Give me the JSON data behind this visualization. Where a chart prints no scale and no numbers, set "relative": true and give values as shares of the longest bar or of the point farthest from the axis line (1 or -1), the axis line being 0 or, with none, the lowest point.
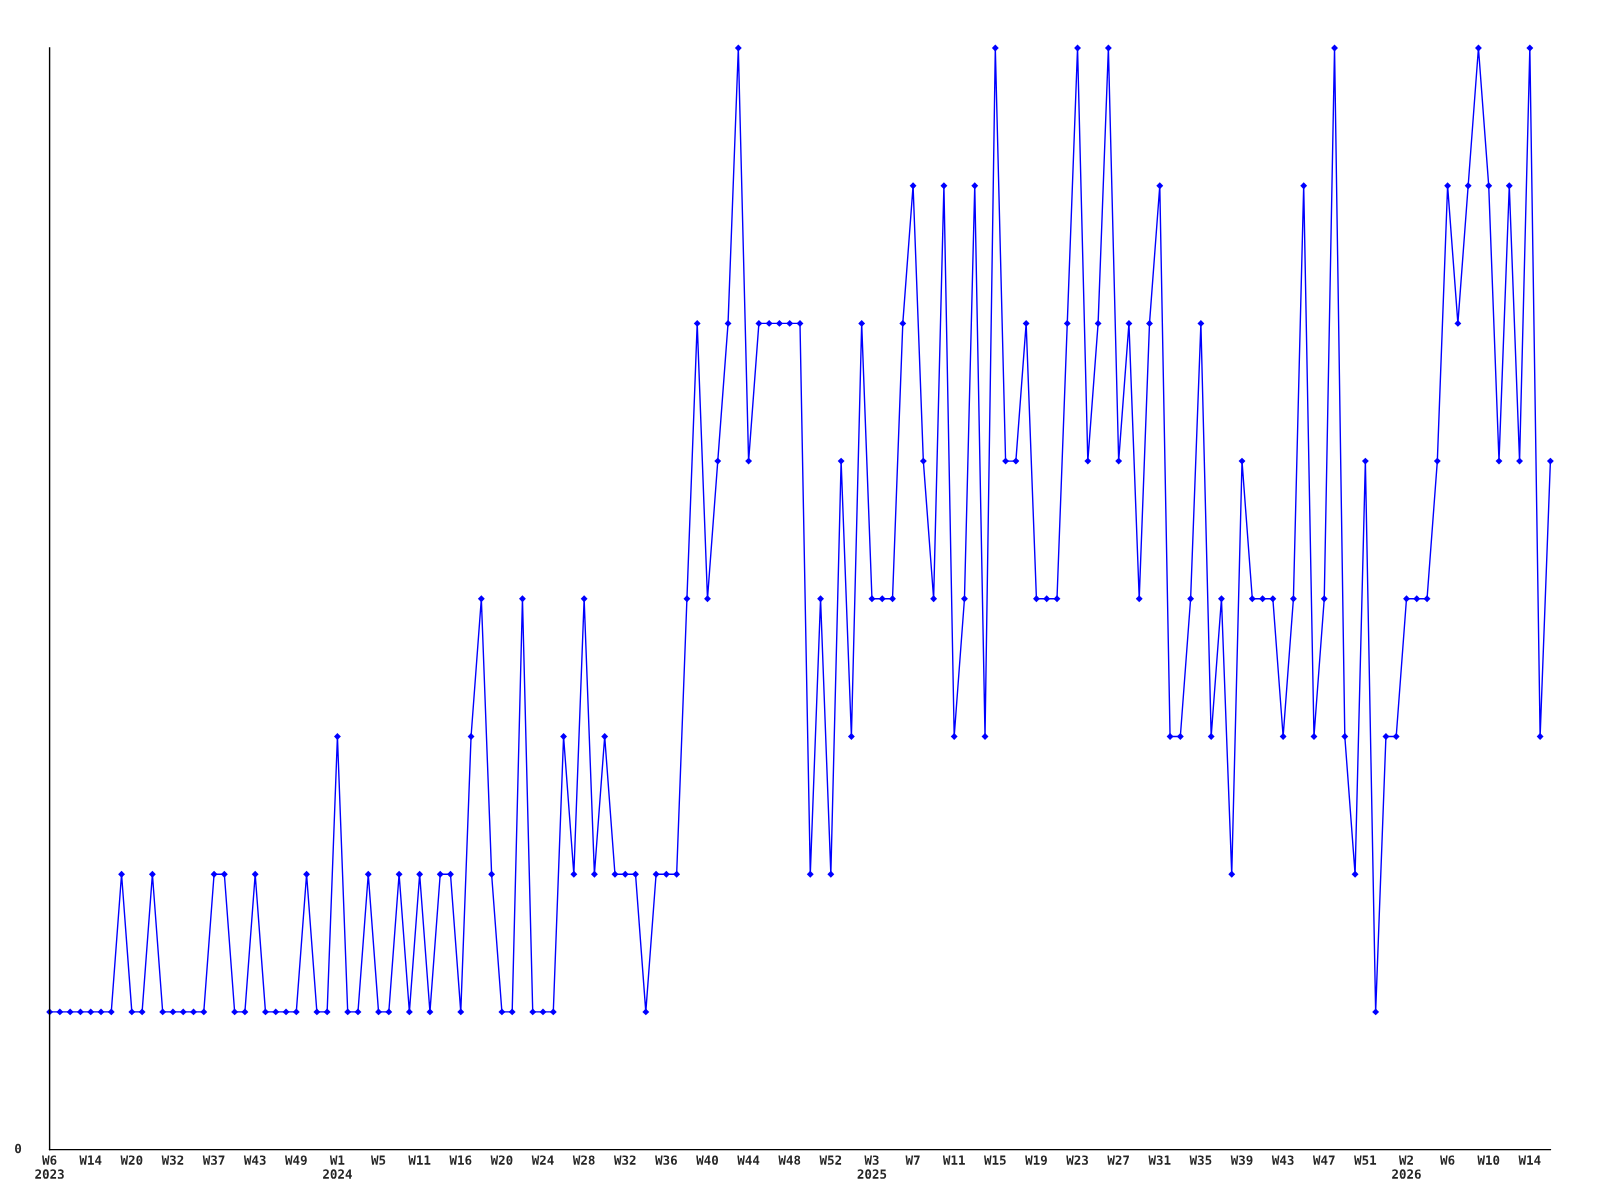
{
  "chart_data": {
    "type": "line",
    "relative": true,
    "marker": "diamond",
    "line_style": "solid",
    "grid": false,
    "legend": false,
    "annotations": [
      "0"
    ],
    "categories": [
      "W6\n2023",
      null,
      null,
      null,
      "W14",
      null,
      null,
      null,
      "W20",
      null,
      null,
      null,
      "W32",
      null,
      null,
      null,
      "W37",
      null,
      null,
      null,
      "W43",
      null,
      null,
      null,
      "W49",
      null,
      null,
      null,
      "W1\n2024",
      null,
      null,
      null,
      "W5",
      null,
      null,
      null,
      "W11",
      null,
      null,
      null,
      "W16",
      null,
      null,
      null,
      "W20",
      null,
      null,
      null,
      "W24",
      null,
      null,
      null,
      "W28",
      null,
      null,
      null,
      "W32",
      null,
      null,
      null,
      "W36",
      null,
      null,
      null,
      "W40",
      null,
      null,
      null,
      "W44",
      null,
      null,
      null,
      "W48",
      null,
      null,
      null,
      "W52",
      null,
      null,
      null,
      "W3\n2025",
      null,
      null,
      null,
      "W7",
      null,
      null,
      null,
      "W11",
      null,
      null,
      null,
      "W15",
      null,
      null,
      null,
      "W19",
      null,
      null,
      null,
      "W23",
      null,
      null,
      null,
      "W27",
      null,
      null,
      null,
      "W31",
      null,
      null,
      null,
      "W35",
      null,
      null,
      null,
      "W39",
      null,
      null,
      null,
      "W43",
      null,
      null,
      null,
      "W47",
      null,
      null,
      null,
      "W51",
      null,
      null,
      null,
      "W2\n2026",
      null,
      null,
      null,
      "W6",
      null,
      null,
      null,
      "W10",
      null,
      null,
      null,
      "W14",
      null,
      null
    ],
    "series": [
      {
        "color": "#0000ff",
        "values": [
          0.125,
          0.125,
          0.125,
          0.125,
          0.125,
          0.125,
          0.125,
          0.25,
          0.125,
          0.125,
          0.25,
          0.125,
          0.125,
          0.125,
          0.125,
          0.125,
          0.25,
          0.25,
          0.125,
          0.125,
          0.25,
          0.125,
          0.125,
          0.125,
          0.125,
          0.25,
          0.125,
          0.125,
          0.375,
          0.125,
          0.125,
          0.25,
          0.125,
          0.125,
          0.25,
          0.125,
          0.25,
          0.125,
          0.25,
          0.25,
          0.125,
          0.375,
          0.5,
          0.25,
          0.125,
          0.125,
          0.5,
          0.125,
          0.125,
          0.125,
          0.375,
          0.25,
          0.5,
          0.25,
          0.375,
          0.25,
          0.25,
          0.25,
          0.125,
          0.25,
          0.25,
          0.25,
          0.5,
          0.75,
          0.5,
          0.625,
          0.75,
          1,
          0.625,
          0.75,
          0.75,
          0.75,
          0.75,
          0.75,
          0.25,
          0.5,
          0.25,
          0.625,
          0.375,
          0.75,
          0.5,
          0.5,
          0.5,
          0.75,
          0.875,
          0.625,
          0.5,
          0.875,
          0.375,
          0.5,
          0.875,
          0.375,
          1,
          0.625,
          0.625,
          0.75,
          0.5,
          0.5,
          0.5,
          0.75,
          1,
          0.625,
          0.75,
          1,
          0.625,
          0.75,
          0.5,
          0.75,
          0.875,
          0.375,
          0.375,
          0.5,
          0.75,
          0.375,
          0.5,
          0.25,
          0.625,
          0.5,
          0.5,
          0.5,
          0.375,
          0.5,
          0.875,
          0.375,
          0.5,
          1,
          0.375,
          0.25,
          0.625,
          0.125,
          0.375,
          0.375,
          0.5,
          0.5,
          0.5,
          0.625,
          0.875,
          0.75,
          0.875,
          1,
          0.875,
          0.625,
          0.875,
          0.625,
          1,
          0.375,
          0.625
        ]
      }
    ]
  }
}
